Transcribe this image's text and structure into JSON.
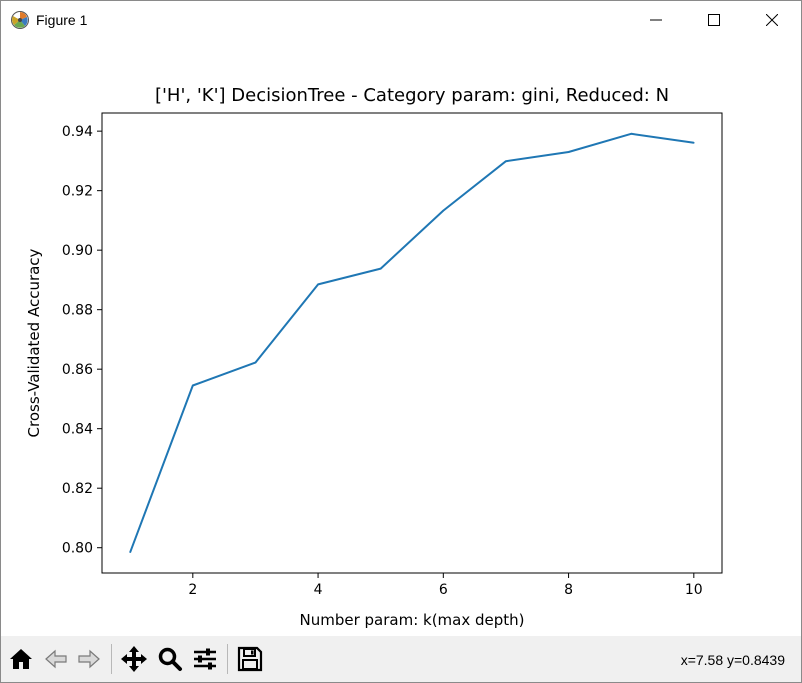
{
  "window": {
    "title": "Figure 1",
    "icons": {
      "app": "matplotlib-icon",
      "minimize": "minimize-icon",
      "maximize": "maximize-icon",
      "close": "close-icon"
    }
  },
  "toolbar": {
    "buttons": [
      {
        "name": "home-button",
        "icon": "home-icon"
      },
      {
        "name": "back-button",
        "icon": "arrow-left-icon"
      },
      {
        "name": "forward-button",
        "icon": "arrow-right-icon"
      },
      {
        "name": "pan-button",
        "icon": "move-icon"
      },
      {
        "name": "zoom-button",
        "icon": "magnifier-icon"
      },
      {
        "name": "configure-subplots-button",
        "icon": "sliders-icon"
      },
      {
        "name": "save-button",
        "icon": "floppy-disk-icon"
      }
    ],
    "coordinates": "x=7.58 y=0.8439"
  },
  "chart_data": {
    "type": "line",
    "title": "['H', 'K'] DecisionTree - Category param: gini, Reduced: N",
    "xlabel": "Number param: k(max depth)",
    "ylabel": "Cross-Validated Accuracy",
    "x": [
      1,
      2,
      3,
      4,
      5,
      6,
      7,
      8,
      9,
      10
    ],
    "series": [
      {
        "values": [
          0.7985,
          0.8545,
          0.8622,
          0.8885,
          0.8938,
          0.9133,
          0.9299,
          0.933,
          0.9391,
          0.9361
        ],
        "color": "#1f77b4"
      }
    ],
    "xticks": [
      2,
      4,
      6,
      8,
      10
    ],
    "xtick_labels": [
      "2",
      "4",
      "6",
      "8",
      "10"
    ],
    "yticks": [
      0.8,
      0.82,
      0.84,
      0.86,
      0.88,
      0.9,
      0.92,
      0.94
    ],
    "ytick_labels": [
      "0.80",
      "0.82",
      "0.84",
      "0.86",
      "0.88",
      "0.90",
      "0.92",
      "0.94"
    ],
    "xlim": [
      0.55,
      10.45
    ],
    "ylim": [
      0.7915,
      0.9461
    ],
    "grid": false,
    "legend": "none"
  }
}
